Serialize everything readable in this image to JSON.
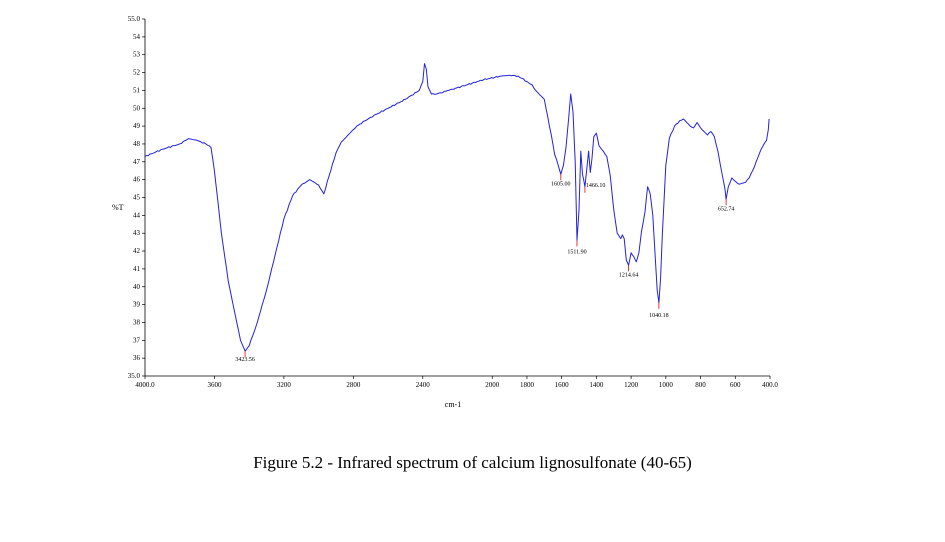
{
  "caption": "Figure 5.2 - Infrared spectrum of calcium lignosulfonate (40-65)",
  "chart_data": {
    "type": "line",
    "title": "",
    "xlabel": "cm-1",
    "ylabel": "%T",
    "xlim": [
      4000,
      400
    ],
    "ylim": [
      35,
      55
    ],
    "x_reversed": true,
    "grid": false,
    "line_color": "#2222dd",
    "peak_color": "#dd2222",
    "x_ticks": [
      {
        "value": 4000,
        "label": "4000.0"
      },
      {
        "value": 3600,
        "label": "3600"
      },
      {
        "value": 3200,
        "label": "3200"
      },
      {
        "value": 2800,
        "label": "2800"
      },
      {
        "value": 2400,
        "label": "2400"
      },
      {
        "value": 2000,
        "label": "2000"
      },
      {
        "value": 1800,
        "label": "1800"
      },
      {
        "value": 1600,
        "label": "1600"
      },
      {
        "value": 1400,
        "label": "1400"
      },
      {
        "value": 1200,
        "label": "1200"
      },
      {
        "value": 1000,
        "label": "1000"
      },
      {
        "value": 800,
        "label": "800"
      },
      {
        "value": 600,
        "label": "600"
      },
      {
        "value": 400,
        "label": "400.0"
      }
    ],
    "y_ticks": [
      {
        "value": 55,
        "label": "55.0"
      },
      {
        "value": 54,
        "label": "54"
      },
      {
        "value": 53,
        "label": "53"
      },
      {
        "value": 52,
        "label": "52"
      },
      {
        "value": 51,
        "label": "51"
      },
      {
        "value": 50,
        "label": "50"
      },
      {
        "value": 49,
        "label": "49"
      },
      {
        "value": 48,
        "label": "48"
      },
      {
        "value": 47,
        "label": "47"
      },
      {
        "value": 46,
        "label": "46"
      },
      {
        "value": 45,
        "label": "45"
      },
      {
        "value": 44,
        "label": "44"
      },
      {
        "value": 43,
        "label": "43"
      },
      {
        "value": 42,
        "label": "42"
      },
      {
        "value": 41,
        "label": "41"
      },
      {
        "value": 40,
        "label": "40"
      },
      {
        "value": 39,
        "label": "39"
      },
      {
        "value": 38,
        "label": "38"
      },
      {
        "value": 37,
        "label": "37"
      },
      {
        "value": 36,
        "label": "36"
      },
      {
        "value": 35,
        "label": "35.0"
      }
    ],
    "series": [
      {
        "x": [
          4000,
          3900,
          3800,
          3750,
          3700,
          3650,
          3620,
          3600,
          3560,
          3520,
          3480,
          3450,
          3423.56,
          3400,
          3360,
          3300,
          3250,
          3200,
          3150,
          3100,
          3050,
          3000,
          2970,
          2940,
          2900,
          2870,
          2850,
          2820,
          2780,
          2700,
          2600,
          2500,
          2420,
          2400,
          2390,
          2380,
          2370,
          2350,
          2320,
          2250,
          2150,
          2050,
          1950,
          1900,
          1850,
          1800,
          1770,
          1750,
          1720,
          1700,
          1680,
          1660,
          1640,
          1620,
          1605,
          1590,
          1575,
          1560,
          1548,
          1535,
          1522,
          1511.9,
          1500,
          1490,
          1480,
          1466.1,
          1455,
          1445,
          1435,
          1425,
          1415,
          1400,
          1385,
          1370,
          1340,
          1320,
          1300,
          1280,
          1260,
          1250,
          1240,
          1228,
          1214.64,
          1200,
          1185,
          1170,
          1155,
          1140,
          1120,
          1105,
          1090,
          1075,
          1060,
          1050,
          1040.18,
          1030,
          1020,
          1000,
          980,
          950,
          920,
          900,
          880,
          860,
          840,
          820,
          800,
          780,
          760,
          740,
          720,
          700,
          680,
          660,
          652.74,
          640,
          620,
          600,
          580,
          560,
          540,
          520,
          500,
          480,
          460,
          440,
          420,
          410,
          405
        ],
        "y": [
          47.3,
          47.7,
          48,
          48.3,
          48.2,
          48,
          47.8,
          46.5,
          43,
          40.3,
          38.4,
          37,
          36.4,
          36.7,
          37.8,
          39.8,
          41.8,
          43.8,
          45.1,
          45.7,
          46,
          45.7,
          45.2,
          46.2,
          47.5,
          48.1,
          48.3,
          48.6,
          49,
          49.5,
          50,
          50.5,
          51,
          51.5,
          52.5,
          52.2,
          51.2,
          50.8,
          50.8,
          51,
          51.3,
          51.6,
          51.8,
          51.85,
          51.8,
          51.5,
          51.3,
          51,
          50.7,
          50.5,
          49.5,
          48.5,
          47.4,
          46.8,
          46.3,
          46.8,
          47.8,
          49.4,
          50.8,
          49.8,
          47,
          42.6,
          44.3,
          47.6,
          46.3,
          45.6,
          46.6,
          47.6,
          46.4,
          47.2,
          48.4,
          48.6,
          47.9,
          47.7,
          47.3,
          46.2,
          44.3,
          43,
          42.7,
          42.9,
          42.7,
          41.5,
          41.2,
          41.9,
          41.7,
          41.4,
          41.9,
          43.1,
          44.2,
          45.6,
          45.2,
          44,
          41.5,
          39.8,
          39.1,
          40.5,
          43,
          46.8,
          48.3,
          49,
          49.3,
          49.4,
          49.2,
          49,
          48.9,
          49.2,
          48.9,
          48.7,
          48.5,
          48.7,
          48.4,
          47.6,
          46.5,
          45.5,
          44.9,
          45.6,
          46.1,
          45.9,
          45.75,
          45.8,
          45.85,
          46.1,
          46.5,
          47,
          47.5,
          47.9,
          48.2,
          48.8,
          49.4
        ]
      }
    ],
    "annotations": [
      {
        "x": 3423.56,
        "y": 36.4,
        "label": "3423.56"
      },
      {
        "x": 1605,
        "y": 46.3,
        "label": "1605.00"
      },
      {
        "x": 1511.9,
        "y": 42.6,
        "label": "1511.90"
      },
      {
        "x": 1466.1,
        "y": 45.6,
        "label": "1466.10"
      },
      {
        "x": 1214.64,
        "y": 41.2,
        "label": "1214.64"
      },
      {
        "x": 1040.18,
        "y": 39.1,
        "label": "1040.18"
      },
      {
        "x": 652.74,
        "y": 44.9,
        "label": "652.74"
      }
    ]
  }
}
